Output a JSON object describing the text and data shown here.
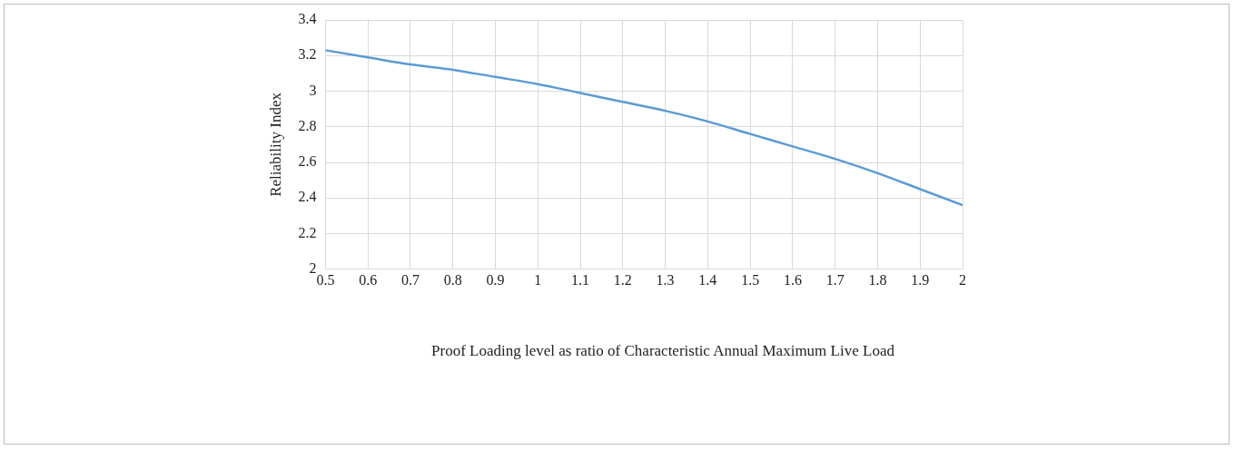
{
  "chart_data": {
    "type": "line",
    "xlabel": "Proof Loading level as ratio of Characteristic Annual Maximum Live Load",
    "ylabel": "Reliability Index",
    "x": [
      0.5,
      0.6,
      0.7,
      0.8,
      0.9,
      1,
      1.1,
      1.2,
      1.3,
      1.4,
      1.5,
      1.6,
      1.7,
      1.8,
      1.9,
      2
    ],
    "series": [
      {
        "color": "#5b9bd5",
        "values": [
          3.23,
          3.19,
          3.15,
          3.12,
          3.08,
          3.04,
          2.99,
          2.94,
          2.89,
          2.83,
          2.76,
          2.69,
          2.62,
          2.54,
          2.45,
          2.36
        ]
      }
    ],
    "xlim": [
      0.5,
      2
    ],
    "xticks": [
      0.5,
      0.6,
      0.7,
      0.8,
      0.9,
      1,
      1.1,
      1.2,
      1.3,
      1.4,
      1.5,
      1.6,
      1.7,
      1.8,
      1.9,
      2
    ],
    "ylim": [
      2,
      3.4
    ],
    "yticks": [
      2,
      2.2,
      2.4,
      2.6,
      2.8,
      3,
      3.2,
      3.4
    ],
    "grid": true,
    "marker": "none",
    "line_style": "solid",
    "legend": false
  }
}
